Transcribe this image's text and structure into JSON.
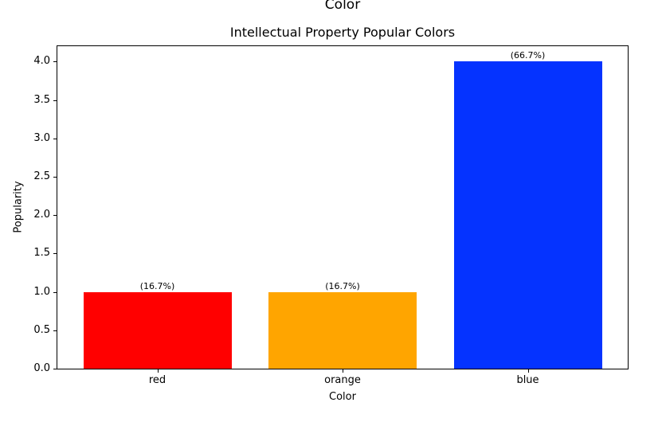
{
  "page": {
    "top_label": "Color"
  },
  "chart_data": {
    "type": "bar",
    "title": "Intellectual Property Popular Colors",
    "xlabel": "Color",
    "ylabel": "Popularity",
    "categories": [
      "red",
      "orange",
      "blue"
    ],
    "values": [
      1,
      1,
      4
    ],
    "bar_colors": [
      "#ff0000",
      "#ffa500",
      "#0533ff"
    ],
    "annotations": [
      "(16.7%)",
      "(16.7%)",
      "(66.7%)"
    ],
    "yticks": [
      "0.0",
      "0.5",
      "1.0",
      "1.5",
      "2.0",
      "2.5",
      "3.0",
      "3.5",
      "4.0"
    ],
    "ylim": [
      0,
      4.2
    ],
    "bar_width_fraction": 0.8,
    "grid": false,
    "legend_position": "none",
    "background_color": "#ffffff",
    "axis_color": "#000000",
    "text_color": "#000000"
  }
}
